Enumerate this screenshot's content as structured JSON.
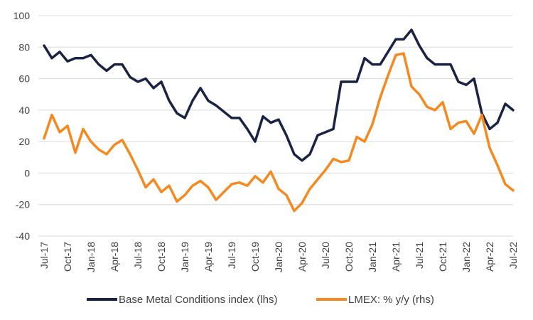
{
  "chart_data": {
    "type": "line",
    "ylim": [
      -40,
      100
    ],
    "yticks": [
      -40,
      -20,
      0,
      20,
      40,
      60,
      80,
      100
    ],
    "grid": true,
    "legend_position": "bottom",
    "x": [
      "Jul-17",
      "Aug-17",
      "Sep-17",
      "Oct-17",
      "Nov-17",
      "Dec-17",
      "Jan-18",
      "Feb-18",
      "Mar-18",
      "Apr-18",
      "May-18",
      "Jun-18",
      "Jul-18",
      "Aug-18",
      "Sep-18",
      "Oct-18",
      "Nov-18",
      "Dec-18",
      "Jan-19",
      "Feb-19",
      "Mar-19",
      "Apr-19",
      "May-19",
      "Jun-19",
      "Jul-19",
      "Aug-19",
      "Sep-19",
      "Oct-19",
      "Nov-19",
      "Dec-19",
      "Jan-20",
      "Feb-20",
      "Mar-20",
      "Apr-20",
      "May-20",
      "Jun-20",
      "Jul-20",
      "Aug-20",
      "Sep-20",
      "Oct-20",
      "Nov-20",
      "Dec-20",
      "Jan-21",
      "Feb-21",
      "Mar-21",
      "Apr-21",
      "May-21",
      "Jun-21",
      "Jul-21",
      "Aug-21",
      "Sep-21",
      "Oct-21",
      "Nov-21",
      "Dec-21",
      "Jan-22",
      "Feb-22",
      "Mar-22",
      "Apr-22",
      "May-22",
      "Jun-22",
      "Jul-22"
    ],
    "xtick_labels": [
      "Jul-17",
      "Oct-17",
      "Jan-18",
      "Apr-18",
      "Jul-18",
      "Oct-18",
      "Jan-19",
      "Apr-19",
      "Jul-19",
      "Oct-19",
      "Jan-20",
      "Apr-20",
      "Jul-20",
      "Oct-20",
      "Jan-21",
      "Apr-21",
      "Jul-21",
      "Oct-21",
      "Jan-22",
      "Apr-22",
      "Jul-22"
    ],
    "series": [
      {
        "name": "Base Metal Conditions index (lhs)",
        "color": "#1a2344",
        "values": [
          81,
          73,
          77,
          71,
          73,
          73,
          75,
          69,
          65,
          69,
          69,
          61,
          58,
          60,
          54,
          58,
          46,
          38,
          35,
          46,
          54,
          46,
          43,
          39,
          35,
          35,
          28,
          20,
          36,
          32,
          34,
          24,
          12,
          8,
          12,
          24,
          26,
          28,
          58,
          58,
          58,
          73,
          69,
          69,
          77,
          85,
          85,
          91,
          81,
          73,
          69,
          69,
          69,
          58,
          56,
          60,
          38,
          28,
          32,
          44,
          40
        ]
      },
      {
        "name": "LMEX: % y/y (rhs)",
        "color": "#f5891f",
        "values": [
          22,
          37,
          26,
          30,
          13,
          28,
          20,
          15,
          12,
          18,
          21,
          12,
          2,
          -9,
          -4,
          -12,
          -8,
          -18,
          -14,
          -8,
          -5,
          -9,
          -17,
          -12,
          -7,
          -6,
          -8,
          -2,
          -6,
          1,
          -10,
          -14,
          -24,
          -19,
          -10,
          -4,
          2,
          9,
          7,
          8,
          23,
          20,
          31,
          48,
          62,
          75,
          76,
          55,
          50,
          42,
          40,
          45,
          28,
          32,
          33,
          25,
          37,
          16,
          5,
          -7,
          -11
        ]
      }
    ]
  }
}
